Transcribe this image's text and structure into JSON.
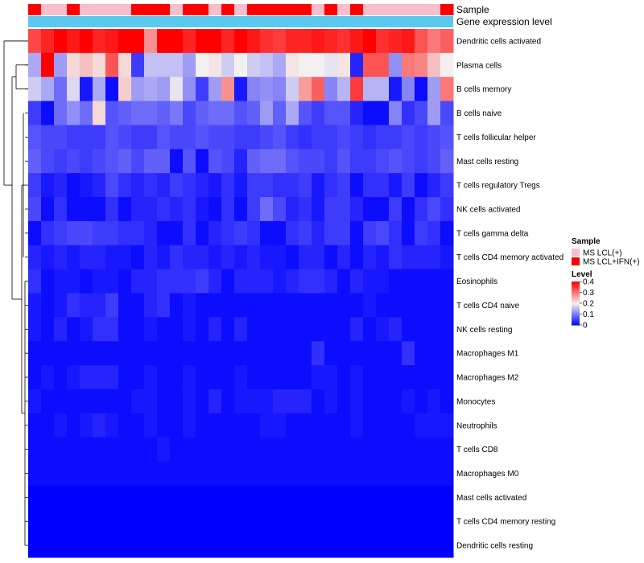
{
  "chart_data": {
    "type": "heatmap",
    "title": "",
    "annotations": {
      "sample_label": "Sample",
      "expression_label": "Gene expression level",
      "sample_groups": [
        1,
        0,
        0,
        1,
        0,
        0,
        0,
        0,
        1,
        1,
        1,
        0,
        1,
        1,
        0,
        1,
        0,
        1,
        1,
        1,
        1,
        1,
        0,
        1,
        0,
        1,
        0,
        0,
        0,
        0,
        0,
        0,
        1
      ],
      "expression_color": "#5bc8ef"
    },
    "rows": [
      "Dendritic cells activated",
      "Plasma cells",
      "B cells memory",
      "B cells naive",
      "T cells follicular helper",
      "Mast cells resting",
      "T cells regulatory  Tregs",
      "NK cells activated",
      "T cells gamma delta",
      "T cells CD4 memory activated",
      "Eosinophils",
      "T cells CD4 naive",
      "NK cells resting",
      "Macrophages M1",
      "Macrophages M2",
      "Monocytes",
      "Neutrophils",
      "T cells CD8",
      "Macrophages M0",
      "Mast cells activated",
      "T cells CD4 memory resting",
      "Dendritic cells resting"
    ],
    "values": [
      [
        0.34,
        0.37,
        0.4,
        0.38,
        0.4,
        0.37,
        0.38,
        0.4,
        0.4,
        0.28,
        0.4,
        0.4,
        0.37,
        0.4,
        0.4,
        0.37,
        0.4,
        0.38,
        0.36,
        0.35,
        0.37,
        0.37,
        0.38,
        0.37,
        0.36,
        0.38,
        0.4,
        0.36,
        0.37,
        0.38,
        0.33,
        0.3,
        0.32
      ],
      [
        0.14,
        0.4,
        0.13,
        0.22,
        0.24,
        0.22,
        0.33,
        0.22,
        0.05,
        0.16,
        0.16,
        0.16,
        0.13,
        0.2,
        0.21,
        0.17,
        0.2,
        0.17,
        0.16,
        0.14,
        0.21,
        0.2,
        0.2,
        0.19,
        0.21,
        0.03,
        0.33,
        0.33,
        0.12,
        0.3,
        0.29,
        0.24,
        0.2
      ],
      [
        0.17,
        0.14,
        0.09,
        0.18,
        0.02,
        0.14,
        0.01,
        0.23,
        0.13,
        0.14,
        0.13,
        0.19,
        0.12,
        0.05,
        0.13,
        0.28,
        0.02,
        0.11,
        0.12,
        0.11,
        0.17,
        0.27,
        0.32,
        0.11,
        0.15,
        0.35,
        0.15,
        0.15,
        0.02,
        0.11,
        0.01,
        0.13,
        0.3
      ],
      [
        0.05,
        0.01,
        0.09,
        0.12,
        0.09,
        0.22,
        0.07,
        0.08,
        0.09,
        0.09,
        0.08,
        0.1,
        0.06,
        0.08,
        0.09,
        0.09,
        0.07,
        0.08,
        0.13,
        0.08,
        0.14,
        0.07,
        0.05,
        0.07,
        0.07,
        0.03,
        0.01,
        0.01,
        0.11,
        0.04,
        0.06,
        0.13,
        0.06
      ],
      [
        0.07,
        0.06,
        0.06,
        0.05,
        0.05,
        0.05,
        0.07,
        0.06,
        0.05,
        0.05,
        0.07,
        0.06,
        0.06,
        0.07,
        0.06,
        0.06,
        0.05,
        0.05,
        0.06,
        0.07,
        0.05,
        0.04,
        0.05,
        0.05,
        0.06,
        0.05,
        0.04,
        0.05,
        0.05,
        0.06,
        0.05,
        0.06,
        0.07
      ],
      [
        0.08,
        0.06,
        0.05,
        0.06,
        0.05,
        0.06,
        0.07,
        0.08,
        0.06,
        0.08,
        0.08,
        0.01,
        0.07,
        0.01,
        0.07,
        0.06,
        0.03,
        0.08,
        0.09,
        0.09,
        0.07,
        0.06,
        0.06,
        0.05,
        0.07,
        0.05,
        0.05,
        0.06,
        0.07,
        0.06,
        0.05,
        0.06,
        0.08
      ],
      [
        0.05,
        0.02,
        0.03,
        0.01,
        0.02,
        0.03,
        0.06,
        0.04,
        0.03,
        0.04,
        0.03,
        0.05,
        0.04,
        0.03,
        0.02,
        0.04,
        0.02,
        0.05,
        0.05,
        0.04,
        0.04,
        0.05,
        0.02,
        0.04,
        0.05,
        0.01,
        0.04,
        0.04,
        0.02,
        0.05,
        0.01,
        0.03,
        0.05
      ],
      [
        0.06,
        0.01,
        0.04,
        0.01,
        0.01,
        0.01,
        0.04,
        0.01,
        0.03,
        0.03,
        0.04,
        0.03,
        0.04,
        0.02,
        0.01,
        0.04,
        0.01,
        0.05,
        0.09,
        0.06,
        0.03,
        0.04,
        0.02,
        0.05,
        0.05,
        0.03,
        0.01,
        0.01,
        0.05,
        0.01,
        0.04,
        0.06,
        0.04
      ],
      [
        0.01,
        0.04,
        0.05,
        0.06,
        0.06,
        0.05,
        0.05,
        0.04,
        0.04,
        0.03,
        0.01,
        0.01,
        0.04,
        0.01,
        0.03,
        0.04,
        0.05,
        0.04,
        0.01,
        0.01,
        0.04,
        0.05,
        0.03,
        0.05,
        0.05,
        0.01,
        0.05,
        0.06,
        0.04,
        0.01,
        0.05,
        0.04,
        0.01
      ],
      [
        0.03,
        0.02,
        0.03,
        0.02,
        0.03,
        0.03,
        0.02,
        0.02,
        0.01,
        0.03,
        0.02,
        0.04,
        0.03,
        0.03,
        0.02,
        0.03,
        0.02,
        0.03,
        0.02,
        0.02,
        0.01,
        0.03,
        0.03,
        0.01,
        0.03,
        0.01,
        0.03,
        0.02,
        0.04,
        0.03,
        0.03,
        0.03,
        0.02
      ],
      [
        0.04,
        0.01,
        0.02,
        0.02,
        0.01,
        0.02,
        0.02,
        0.01,
        0.03,
        0.03,
        0.04,
        0.04,
        0.04,
        0.05,
        0.03,
        0.01,
        0.03,
        0.03,
        0.03,
        0.02,
        0.03,
        0.04,
        0.04,
        0.03,
        0.01,
        0.03,
        0.02,
        0.02,
        0.01,
        0.01,
        0.01,
        0.01,
        0.01
      ],
      [
        0.02,
        0.01,
        0.02,
        0.04,
        0.03,
        0.03,
        0.05,
        0.01,
        0.01,
        0.03,
        0.04,
        0.01,
        0.02,
        0.01,
        0.01,
        0.01,
        0.01,
        0.01,
        0.01,
        0.01,
        0.01,
        0.01,
        0.01,
        0.01,
        0.01,
        0.01,
        0.02,
        0.01,
        0.01,
        0.01,
        0.01,
        0.01,
        0.01
      ],
      [
        0.02,
        0.01,
        0.03,
        0.01,
        0.02,
        0.04,
        0.04,
        0.01,
        0.01,
        0.02,
        0.01,
        0.01,
        0.02,
        0.01,
        0.03,
        0.01,
        0.03,
        0.01,
        0.01,
        0.01,
        0.01,
        0.01,
        0.01,
        0.01,
        0.01,
        0.03,
        0.01,
        0.02,
        0.03,
        0.01,
        0.01,
        0.01,
        0.01
      ],
      [
        0.01,
        0.01,
        0.01,
        0.01,
        0.01,
        0.01,
        0.01,
        0.01,
        0.01,
        0.01,
        0.01,
        0.01,
        0.01,
        0.01,
        0.01,
        0.01,
        0.01,
        0.01,
        0.01,
        0.01,
        0.01,
        0.01,
        0.04,
        0.01,
        0.01,
        0.01,
        0.01,
        0.01,
        0.01,
        0.04,
        0.01,
        0.01,
        0.01
      ],
      [
        0.01,
        0.02,
        0.01,
        0.02,
        0.03,
        0.03,
        0.03,
        0.01,
        0.01,
        0.02,
        0.01,
        0.01,
        0.02,
        0.01,
        0.01,
        0.01,
        0.02,
        0.01,
        0.01,
        0.01,
        0.01,
        0.01,
        0.02,
        0.02,
        0.01,
        0.02,
        0.01,
        0.01,
        0.01,
        0.01,
        0.01,
        0.01,
        0.01
      ],
      [
        0.02,
        0.01,
        0.01,
        0.01,
        0.01,
        0.01,
        0.01,
        0.01,
        0.02,
        0.02,
        0.01,
        0.01,
        0.02,
        0.01,
        0.03,
        0.01,
        0.02,
        0.02,
        0.02,
        0.03,
        0.03,
        0.03,
        0.01,
        0.02,
        0.01,
        0.02,
        0.01,
        0.01,
        0.01,
        0.02,
        0.01,
        0.02,
        0.01
      ],
      [
        0.01,
        0.01,
        0.02,
        0.01,
        0.02,
        0.03,
        0.02,
        0.01,
        0.01,
        0.02,
        0.01,
        0.01,
        0.02,
        0.01,
        0.01,
        0.01,
        0.01,
        0.01,
        0.02,
        0.02,
        0.01,
        0.01,
        0.01,
        0.01,
        0.01,
        0.02,
        0.01,
        0.01,
        0.01,
        0.01,
        0.02,
        0.02,
        0.02
      ],
      [
        0.01,
        0.01,
        0.01,
        0.01,
        0.01,
        0.01,
        0.01,
        0.01,
        0.01,
        0.01,
        0.02,
        0.01,
        0.01,
        0.01,
        0.01,
        0.01,
        0.01,
        0.01,
        0.01,
        0.01,
        0.01,
        0.01,
        0.01,
        0.01,
        0.01,
        0.01,
        0.01,
        0.01,
        0.01,
        0.01,
        0.01,
        0.01,
        0.01
      ],
      [
        0.01,
        0.01,
        0.01,
        0.01,
        0.01,
        0.01,
        0.01,
        0.01,
        0.01,
        0.01,
        0.01,
        0.01,
        0.01,
        0.01,
        0.01,
        0.01,
        0.01,
        0.01,
        0.01,
        0.01,
        0.01,
        0.01,
        0.01,
        0.01,
        0.01,
        0.01,
        0.01,
        0.01,
        0.01,
        0.01,
        0.01,
        0.01,
        0.01
      ],
      [
        0,
        0,
        0,
        0,
        0,
        0,
        0,
        0,
        0,
        0,
        0,
        0,
        0,
        0,
        0,
        0,
        0,
        0,
        0,
        0,
        0,
        0,
        0,
        0,
        0,
        0,
        0,
        0,
        0,
        0,
        0,
        0,
        0
      ],
      [
        0,
        0,
        0,
        0,
        0,
        0,
        0,
        0,
        0,
        0,
        0,
        0,
        0,
        0,
        0,
        0,
        0,
        0,
        0,
        0,
        0,
        0,
        0,
        0,
        0,
        0,
        0,
        0,
        0,
        0,
        0,
        0,
        0
      ],
      [
        0,
        0,
        0,
        0,
        0,
        0,
        0,
        0,
        0,
        0,
        0,
        0,
        0,
        0,
        0,
        0,
        0,
        0,
        0,
        0,
        0,
        0,
        0,
        0,
        0,
        0,
        0,
        0,
        0,
        0,
        0,
        0,
        0
      ]
    ],
    "color_scale": {
      "min": 0,
      "max": 0.4,
      "low_color": "#0000ff",
      "mid_color": "#f4f0f0",
      "high_color": "#ff0000",
      "mid_value": 0.2
    },
    "legend": {
      "sample_title": "Sample",
      "sample_entries": [
        {
          "label": "MS LCL(+)",
          "color": "#f7bfce"
        },
        {
          "label": "MS LCL+IFN(+)",
          "color": "#ff0000"
        }
      ],
      "level_title": "Level",
      "level_ticks": [
        "0.4",
        "0.3",
        "0.2",
        "0.1",
        "0"
      ],
      "level_tick_values": [
        0.4,
        0.3,
        0.2,
        0.1,
        0
      ]
    }
  }
}
